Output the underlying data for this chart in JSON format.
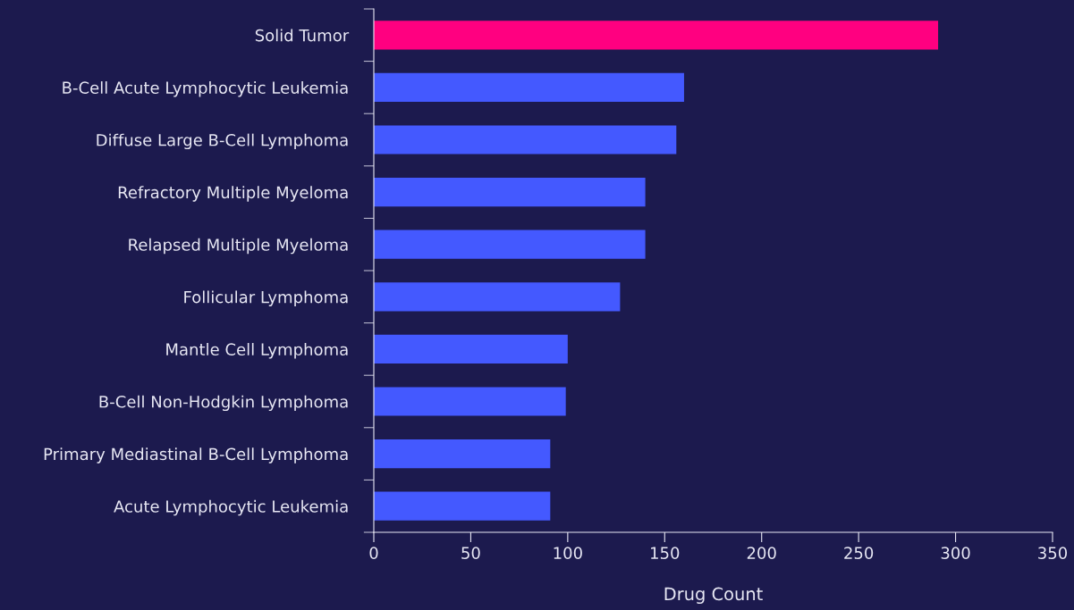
{
  "chart_data": {
    "type": "bar",
    "orientation": "horizontal",
    "xlabel": "Drug Count",
    "categories": [
      "Solid Tumor",
      "B-Cell Acute Lymphocytic Leukemia",
      "Diffuse Large B-Cell Lymphoma",
      "Refractory Multiple Myeloma",
      "Relapsed Multiple Myeloma",
      "Follicular Lymphoma",
      "Mantle Cell Lymphoma",
      "B-Cell Non-Hodgkin Lymphoma",
      "Primary Mediastinal B-Cell Lymphoma",
      "Acute Lymphocytic Leukemia"
    ],
    "values": [
      291,
      160,
      156,
      140,
      140,
      127,
      100,
      99,
      91,
      91
    ],
    "colors": [
      "#ff0080",
      "#4459ff",
      "#4459ff",
      "#4459ff",
      "#4459ff",
      "#4459ff",
      "#4459ff",
      "#4459ff",
      "#4459ff",
      "#4459ff"
    ],
    "xlim": [
      0,
      350
    ],
    "xticks": [
      0,
      50,
      100,
      150,
      200,
      250,
      300,
      350
    ],
    "grid": false,
    "legend": false
  }
}
